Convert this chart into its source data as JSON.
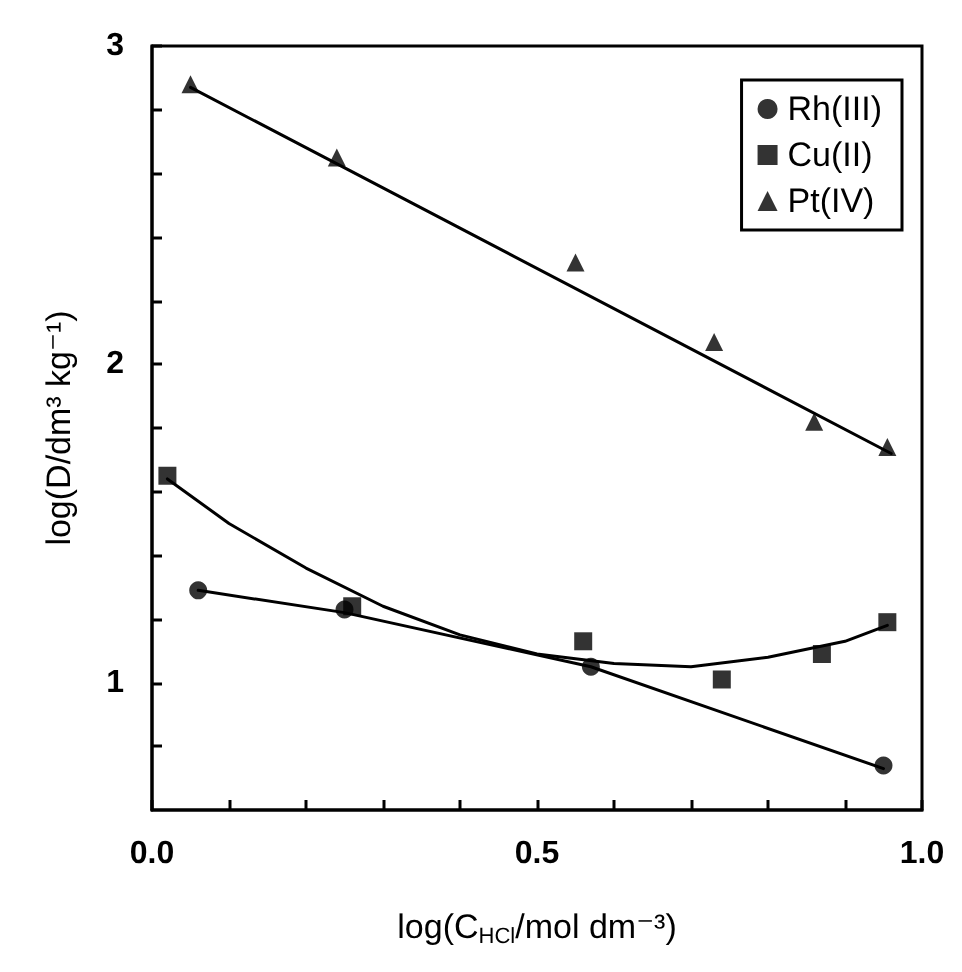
{
  "chart_data": {
    "type": "scatter",
    "xlabel": "log(C$_{HCl}$/mol dm⁻³)",
    "ylabel": "log(D/dm³ kg⁻¹)",
    "xlim": [
      0,
      1
    ],
    "ylim": [
      0.6,
      3
    ],
    "xticks": [
      {
        "value": 0,
        "label": "0.0"
      },
      {
        "value": 0.1,
        "label": null
      },
      {
        "value": 0.2,
        "label": null
      },
      {
        "value": 0.3,
        "label": null
      },
      {
        "value": 0.4,
        "label": null
      },
      {
        "value": 0.5,
        "label": "0.5"
      },
      {
        "value": 0.6,
        "label": null
      },
      {
        "value": 0.7,
        "label": null
      },
      {
        "value": 0.8,
        "label": null
      },
      {
        "value": 0.9,
        "label": null
      },
      {
        "value": 1,
        "label": "1.0"
      }
    ],
    "yticks": [
      {
        "value": 0.8,
        "label": null
      },
      1,
      {
        "value": 1.2,
        "label": null
      },
      {
        "value": 1.4,
        "label": null
      },
      {
        "value": 1.6,
        "label": null
      },
      {
        "value": 1.8,
        "label": null
      },
      2,
      {
        "value": 2.2,
        "label": null
      },
      {
        "value": 2.4,
        "label": null
      },
      {
        "value": 2.6,
        "label": null
      },
      {
        "value": 2.8,
        "label": null
      },
      3
    ],
    "grid": false,
    "legend": "top right",
    "series": [
      {
        "name": "Rh(III)",
        "color": "#000000",
        "marker": "circle",
        "x": [
          0.06,
          0.25,
          0.57,
          0.95
        ],
        "values": [
          1.29,
          1.23,
          1.05,
          0.74
        ]
      },
      {
        "name": "Cu(II)",
        "color": "#000000",
        "marker": "square",
        "x": [
          0.02,
          0.26,
          0.56,
          0.74,
          0.87,
          0.955
        ],
        "values": [
          1.65,
          1.24,
          1.13,
          1.01,
          1.09,
          1.19
        ]
      },
      {
        "name": "Pt(IV)",
        "color": "#000000",
        "marker": "triangle",
        "x": [
          0.05,
          0.24,
          0.55,
          0.73,
          0.86,
          0.955
        ],
        "values": [
          2.88,
          2.65,
          2.32,
          2.07,
          1.82,
          1.74
        ]
      },
      {
        "type": "line",
        "color": "#000000",
        "marker": "none",
        "line_style": "solid",
        "x": [
          0.06,
          0.25,
          0.57,
          0.95
        ],
        "values": [
          1.29,
          1.22,
          1.05,
          0.73
        ]
      },
      {
        "type": "line",
        "color": "#000000",
        "marker": "none",
        "line_style": "solid",
        "x": [
          0.02,
          0.1,
          0.2,
          0.3,
          0.4,
          0.5,
          0.6,
          0.7,
          0.8,
          0.9,
          0.955
        ],
        "values": [
          1.64,
          1.5,
          1.36,
          1.24,
          1.15,
          1.09,
          1.06,
          1.05,
          1.08,
          1.13,
          1.18
        ]
      },
      {
        "type": "line",
        "color": "#000000",
        "marker": "none",
        "line_style": "solid",
        "x": [
          0.05,
          0.96
        ],
        "values": [
          2.87,
          1.72
        ]
      }
    ]
  }
}
